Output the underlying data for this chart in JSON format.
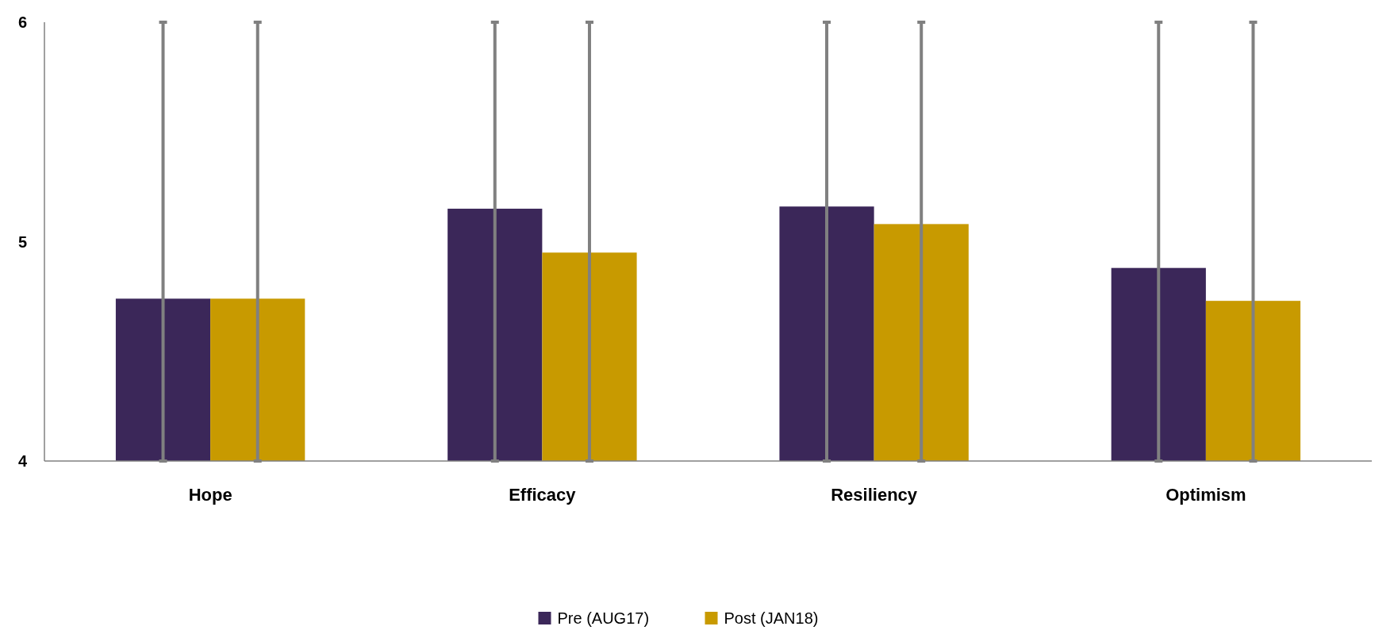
{
  "chart_data": {
    "type": "bar",
    "categories": [
      "Hope",
      "Efficacy",
      "Resiliency",
      "Optimism"
    ],
    "series": [
      {
        "name": "Pre (AUG17)",
        "color": "#3b2759",
        "values": [
          4.74,
          5.15,
          5.16,
          4.88
        ],
        "errors": [
          [
            4,
            6
          ],
          [
            4,
            6
          ],
          [
            4,
            6
          ],
          [
            4,
            6
          ]
        ]
      },
      {
        "name": "Post (JAN18)",
        "color": "#c89a00",
        "values": [
          4.74,
          4.95,
          5.08,
          4.73
        ],
        "errors": [
          [
            4,
            6
          ],
          [
            4,
            6
          ],
          [
            4,
            6
          ],
          [
            4,
            6
          ]
        ]
      }
    ],
    "ylim": [
      4,
      6
    ],
    "yticks": [
      4,
      5,
      6
    ],
    "grid": false,
    "legend": "bottom"
  }
}
